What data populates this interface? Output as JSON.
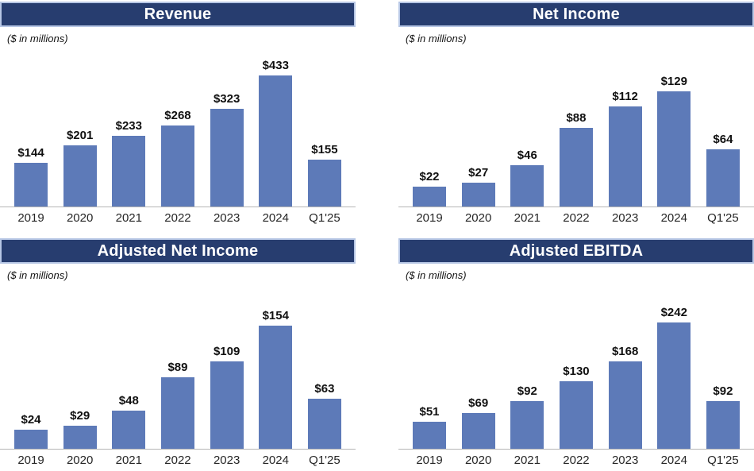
{
  "page": {
    "background": "#ffffff"
  },
  "colors": {
    "title_bar_bg": "#273d6f",
    "title_bar_border": "#b6c6e4",
    "title_text": "#ffffff",
    "bar_fill": "#5d7ab8",
    "axis_line": "#b5b5b5",
    "value_label": "#111111",
    "tick_label": "#262626",
    "subtitle_text": "#141414"
  },
  "chart_data": [
    {
      "id": "revenue",
      "type": "bar",
      "title": "Revenue",
      "subtitle": "($ in millions)",
      "categories": [
        "2019",
        "2020",
        "2021",
        "2022",
        "2023",
        "2024",
        "Q1'25"
      ],
      "values": [
        144,
        201,
        233,
        268,
        323,
        433,
        155
      ],
      "labels": [
        "$144",
        "$201",
        "$233",
        "$268",
        "$323",
        "$433",
        "$155"
      ],
      "xlabel": "",
      "ylabel": "",
      "grid": false,
      "legend": false
    },
    {
      "id": "net-income",
      "type": "bar",
      "title": "Net Income",
      "subtitle": "($ in millions)",
      "categories": [
        "2019",
        "2020",
        "2021",
        "2022",
        "2023",
        "2024",
        "Q1'25"
      ],
      "values": [
        22,
        27,
        46,
        88,
        112,
        129,
        64
      ],
      "labels": [
        "$22",
        "$27",
        "$46",
        "$88",
        "$112",
        "$129",
        "$64"
      ],
      "xlabel": "",
      "ylabel": "",
      "grid": false,
      "legend": false
    },
    {
      "id": "adjusted-net-income",
      "type": "bar",
      "title": "Adjusted Net Income",
      "subtitle": "($ in millions)",
      "categories": [
        "2019",
        "2020",
        "2021",
        "2022",
        "2023",
        "2024",
        "Q1'25"
      ],
      "values": [
        24,
        29,
        48,
        89,
        109,
        154,
        63
      ],
      "labels": [
        "$24",
        "$29",
        "$48",
        "$89",
        "$109",
        "$154",
        "$63"
      ],
      "xlabel": "",
      "ylabel": "",
      "grid": false,
      "legend": false
    },
    {
      "id": "adjusted-ebitda",
      "type": "bar",
      "title": "Adjusted EBITDA",
      "subtitle": "($ in millions)",
      "categories": [
        "2019",
        "2020",
        "2021",
        "2022",
        "2023",
        "2024",
        "Q1'25"
      ],
      "values": [
        51,
        69,
        92,
        130,
        168,
        242,
        92
      ],
      "labels": [
        "$51",
        "$69",
        "$92",
        "$130",
        "$168",
        "$242",
        "$92"
      ],
      "xlabel": "",
      "ylabel": "",
      "grid": false,
      "legend": false
    }
  ]
}
